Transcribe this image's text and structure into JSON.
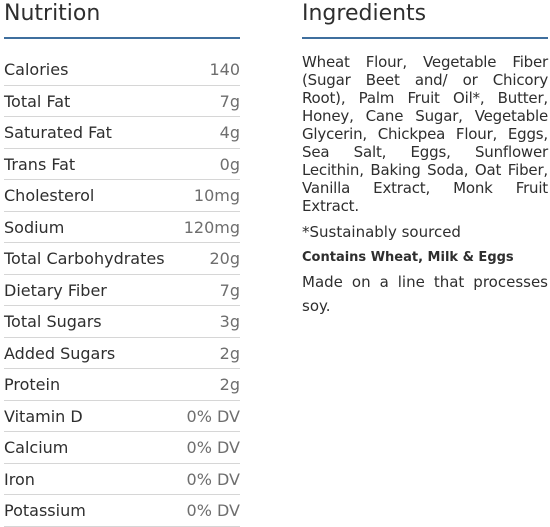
{
  "nutrition": {
    "title": "Nutrition",
    "rows": [
      {
        "label": "Calories",
        "value": "140"
      },
      {
        "label": "Total Fat",
        "value": "7g"
      },
      {
        "label": "Saturated Fat",
        "value": "4g"
      },
      {
        "label": "Trans Fat",
        "value": "0g"
      },
      {
        "label": "Cholesterol",
        "value": "10mg"
      },
      {
        "label": "Sodium",
        "value": "120mg"
      },
      {
        "label": "Total Carbohydrates",
        "value": "20g"
      },
      {
        "label": "Dietary Fiber",
        "value": "7g"
      },
      {
        "label": "Total Sugars",
        "value": "3g"
      },
      {
        "label": "Added Sugars",
        "value": "2g"
      },
      {
        "label": "Protein",
        "value": "2g"
      },
      {
        "label": "Vitamin D",
        "value": "0% DV"
      },
      {
        "label": "Calcium",
        "value": "0% DV"
      },
      {
        "label": "Iron",
        "value": "0% DV"
      },
      {
        "label": "Potassium",
        "value": "0% DV"
      }
    ]
  },
  "ingredients": {
    "title": "Ingredients",
    "text": "Wheat Flour, Vegetable Fiber (Sugar Beet and/ or Chicory Root), Palm Fruit Oil*, Butter, Honey, Cane Sugar, Vegetable Glycerin, Chickpea Flour, Eggs, Sea Salt, Eggs, Sunflower Lecithin, Baking Soda, Oat Fiber, Vanilla Extract, Monk Fruit Extract.",
    "note": "*Sustainably sourced",
    "allergen": "Contains Wheat, Milk & Eggs",
    "process": "Made on a line that processes soy."
  },
  "colors": {
    "accent_rule": "#3f6f9e",
    "row_divider": "#d6d6d6"
  }
}
